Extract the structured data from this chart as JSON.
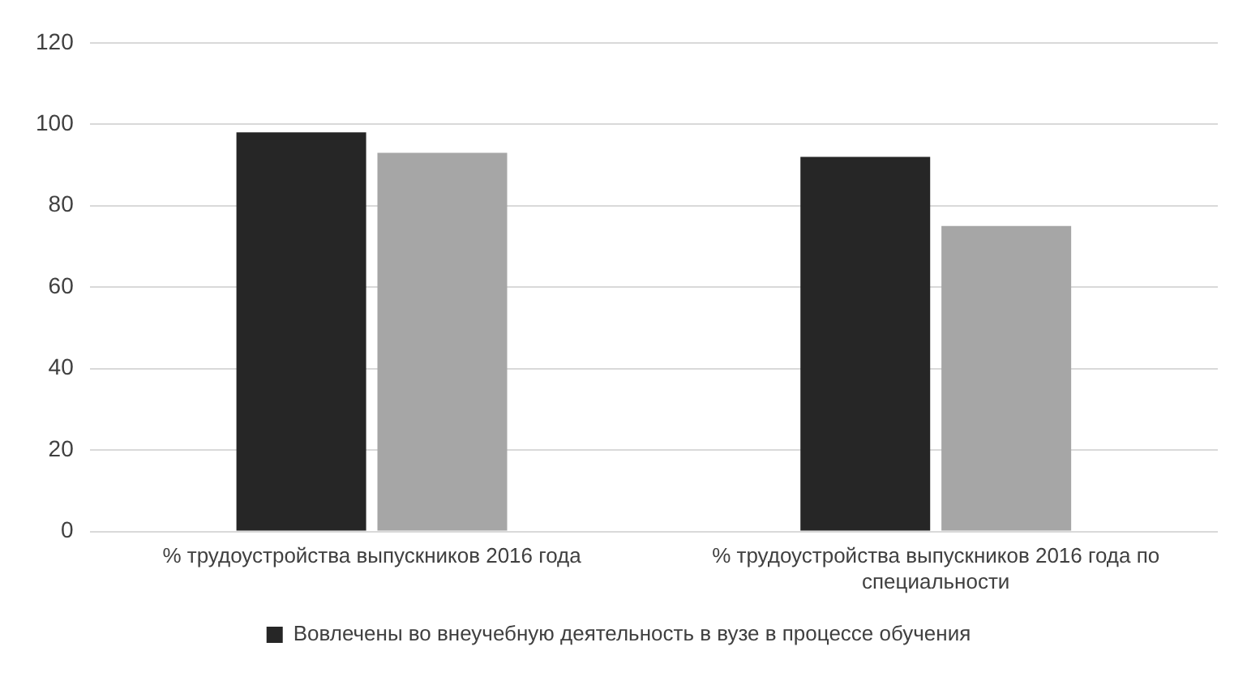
{
  "chart_data": {
    "type": "bar",
    "categories": [
      "% трудоустройства выпускников 2016 года",
      "% трудоустройства выпускников 2016 года по специальности"
    ],
    "series": [
      {
        "name": "Вовлечены во внеучебную деятельность в вузе в процессе обучения",
        "color": "#262626",
        "values": [
          98,
          92
        ]
      },
      {
        "color": "#a6a6a6",
        "values": [
          93,
          75
        ]
      }
    ],
    "ylim": [
      0,
      120
    ],
    "yticks": [
      0,
      20,
      40,
      60,
      80,
      100,
      120
    ],
    "grid": "y",
    "legend": "bottom"
  }
}
